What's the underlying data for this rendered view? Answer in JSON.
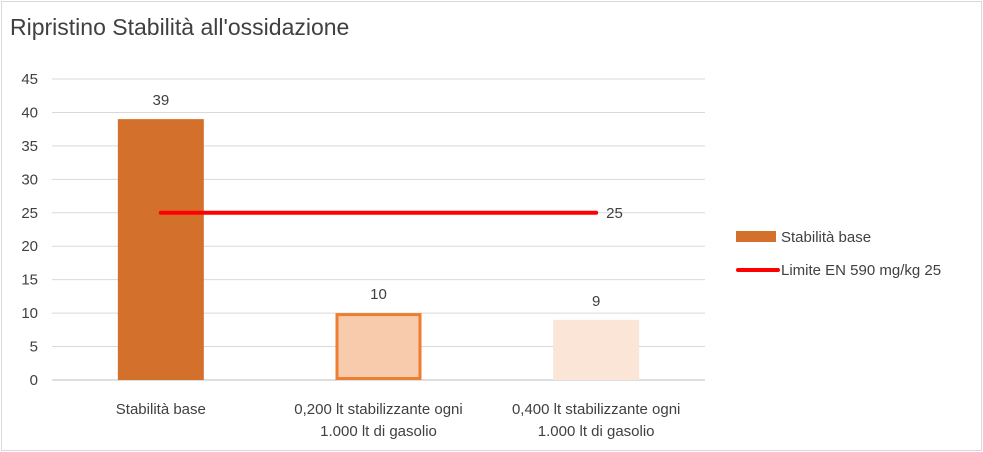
{
  "chart_data": {
    "type": "bar",
    "title": "Ripristino Stabilità all'ossidazione",
    "xlabel": "",
    "ylabel": "",
    "ylim": [
      0,
      45
    ],
    "ytick_step": 5,
    "grid": true,
    "categories": [
      [
        "Stabilità base"
      ],
      [
        "0,200 lt stabilizzante ogni",
        "1.000 lt di gasolio"
      ],
      [
        "0,400 lt stabilizzante ogni",
        "1.000 lt di gasolio"
      ]
    ],
    "bars": {
      "values": [
        39,
        10,
        9
      ],
      "fills": [
        "#d3702c",
        "#f8cbad",
        "#fbe5d6"
      ],
      "outlines": [
        "none",
        "#ed7d31",
        "none"
      ]
    },
    "series": [
      {
        "name": "Stabilità base",
        "type": "bar",
        "color": "#d3702c",
        "values": [
          39,
          10,
          9
        ]
      },
      {
        "name": "Limite EN 590 mg/kg 25",
        "type": "line",
        "color": "#ff0000",
        "values": [
          25,
          25,
          25
        ]
      }
    ],
    "line_label": "25",
    "legend_position": "right"
  }
}
